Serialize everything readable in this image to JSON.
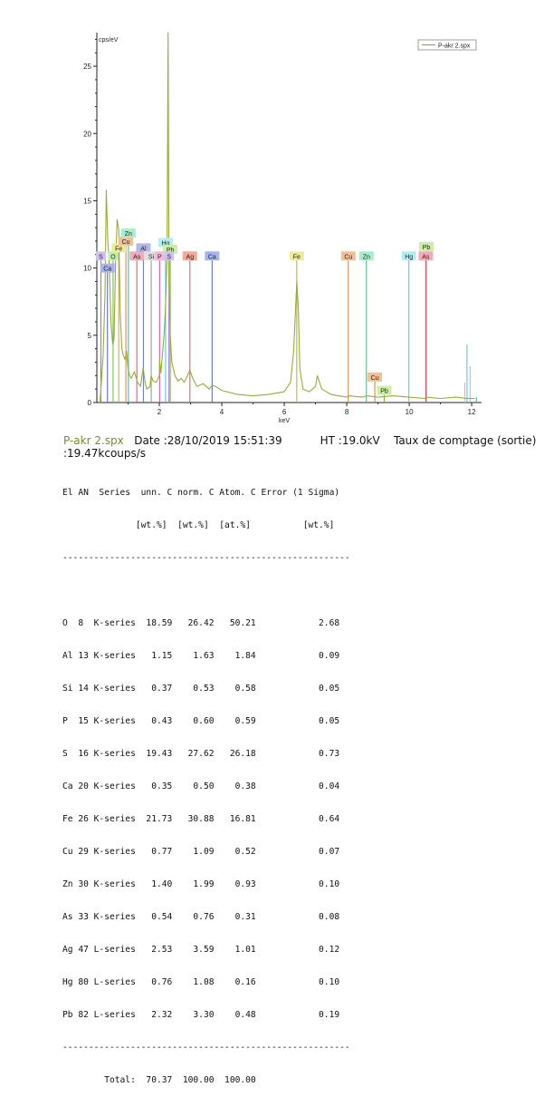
{
  "chart_data": {
    "type": "line",
    "ylabel": "cps/eV",
    "xlabel": "keV",
    "xlim": [
      0,
      12.2
    ],
    "ylim": [
      0,
      27.5
    ],
    "xticks": [
      2,
      4,
      6,
      8,
      10,
      12
    ],
    "yticks": [
      0,
      5,
      10,
      15,
      20,
      25
    ],
    "legend": "top-right",
    "series": [
      {
        "name": "P-akr 2.spx",
        "color": "#9aab3a",
        "x": [
          0.1,
          0.2,
          0.26,
          0.3,
          0.35,
          0.4,
          0.45,
          0.5,
          0.52,
          0.55,
          0.6,
          0.65,
          0.7,
          0.75,
          0.8,
          0.85,
          0.9,
          0.95,
          1.0,
          1.05,
          1.1,
          1.2,
          1.3,
          1.4,
          1.48,
          1.55,
          1.6,
          1.7,
          1.74,
          1.8,
          1.9,
          2.0,
          2.01,
          2.05,
          2.1,
          2.15,
          2.2,
          2.25,
          2.28,
          2.31,
          2.35,
          2.4,
          2.46,
          2.5,
          2.6,
          2.7,
          2.8,
          2.9,
          2.98,
          3.05,
          3.2,
          3.4,
          3.6,
          3.69,
          3.8,
          4.0,
          4.5,
          5.0,
          5.5,
          6.0,
          6.2,
          6.3,
          6.4,
          6.45,
          6.5,
          6.6,
          6.8,
          7.0,
          7.06,
          7.2,
          7.5,
          8.0,
          8.05,
          8.5,
          8.63,
          9.0,
          9.5,
          9.99,
          10.5,
          10.55,
          11.0,
          11.5,
          11.9,
          12.1
        ],
        "values": [
          0.0,
          3.5,
          8.0,
          15.8,
          12.0,
          10.2,
          6.0,
          4.5,
          4.3,
          4.8,
          10.5,
          13.6,
          12.8,
          6.5,
          4.0,
          3.5,
          3.2,
          3.8,
          2.5,
          2.0,
          1.8,
          2.3,
          1.5,
          1.2,
          2.6,
          1.4,
          1.0,
          1.2,
          2.0,
          1.6,
          1.5,
          2.0,
          3.2,
          2.2,
          3.6,
          5.0,
          7.2,
          11.0,
          27.5,
          9.0,
          5.0,
          3.0,
          2.4,
          2.0,
          1.6,
          1.8,
          1.5,
          2.0,
          2.4,
          1.9,
          1.2,
          1.4,
          1.0,
          1.3,
          1.2,
          0.9,
          0.6,
          0.5,
          0.6,
          0.8,
          1.5,
          3.8,
          9.0,
          7.0,
          2.5,
          1.0,
          0.8,
          1.2,
          2.0,
          1.0,
          0.6,
          0.4,
          0.5,
          0.4,
          0.5,
          0.4,
          0.5,
          0.4,
          0.3,
          0.4,
          0.3,
          0.4,
          0.3,
          0.3
        ]
      }
    ],
    "element_markers": [
      {
        "label": "S",
        "x": 0.13,
        "y": 10.9,
        "bg": "#d0c2f0",
        "line": "#9070d0"
      },
      {
        "label": "Ca",
        "x": 0.34,
        "y": 10.0,
        "bg": "#a8b4ee",
        "line": "#5060c8"
      },
      {
        "label": "O",
        "x": 0.52,
        "y": 10.9,
        "bg": "#c4eeb0",
        "line": "#70b050"
      },
      {
        "label": "Fe",
        "x": 0.7,
        "y": 11.5,
        "bg": "#eeec98",
        "line": "#b0b030"
      },
      {
        "label": "Cu",
        "x": 0.93,
        "y": 12.0,
        "bg": "#f2c098",
        "line": "#d08040"
      },
      {
        "label": "Zn",
        "x": 1.01,
        "y": 12.6,
        "bg": "#a8eecc",
        "line": "#40b080"
      },
      {
        "label": "As",
        "x": 1.28,
        "y": 10.9,
        "bg": "#f4aab8",
        "line": "#d05070"
      },
      {
        "label": "Al",
        "x": 1.49,
        "y": 11.5,
        "bg": "#b4b8e8",
        "line": "#6870c8"
      },
      {
        "label": "Si",
        "x": 1.74,
        "y": 10.9,
        "bg": "#e0e0e0",
        "line": "#909090"
      },
      {
        "label": "P",
        "x": 2.01,
        "y": 10.9,
        "bg": "#f4b8dc",
        "line": "#d050a0"
      },
      {
        "label": "Hg",
        "x": 2.2,
        "y": 11.9,
        "bg": "#b4eef2",
        "line": "#50c0d0"
      },
      {
        "label": "Pb",
        "x": 2.35,
        "y": 11.4,
        "bg": "#cceea8",
        "line": "#80b040"
      },
      {
        "label": "S",
        "x": 2.31,
        "y": 10.9,
        "bg": "#d0c2f0",
        "line": "#9070d0"
      },
      {
        "label": "Ag",
        "x": 2.98,
        "y": 10.9,
        "bg": "#f4a898",
        "line": "#d06050"
      },
      {
        "label": "Ca",
        "x": 3.69,
        "y": 10.9,
        "bg": "#a8b4ee",
        "line": "#5060c8"
      },
      {
        "label": "Fe",
        "x": 6.4,
        "y": 10.9,
        "bg": "#eeec98",
        "line": "#b0b030"
      },
      {
        "label": "Cu",
        "x": 8.05,
        "y": 10.9,
        "bg": "#f2c098",
        "line": "#d08040"
      },
      {
        "label": "Zn",
        "x": 8.63,
        "y": 10.9,
        "bg": "#a8eecc",
        "line": "#40b080"
      },
      {
        "label": "Hg",
        "x": 9.99,
        "y": 10.9,
        "bg": "#b4eef2",
        "line": "#50c0d0"
      },
      {
        "label": "Pb",
        "x": 10.55,
        "y": 11.6,
        "bg": "#cceea8",
        "line": "#80b040"
      },
      {
        "label": "As",
        "x": 10.53,
        "y": 10.9,
        "bg": "#f4aab8",
        "line": "#d05070"
      },
      {
        "label": "Cu",
        "x": 8.9,
        "y": 1.9,
        "bg": "#f2c098",
        "line": "#d08040"
      },
      {
        "label": "Pb",
        "x": 9.2,
        "y": 0.9,
        "bg": "#cceea8",
        "line": "#80b040"
      }
    ],
    "right_lines": [
      {
        "x": 11.85,
        "y": 4.3,
        "color": "#50c0d0"
      },
      {
        "x": 11.95,
        "y": 2.7,
        "color": "#a8b4ee"
      },
      {
        "x": 11.78,
        "y": 1.5,
        "color": "#f4aab8"
      },
      {
        "x": 12.15,
        "y": 0.4,
        "color": "#40b080"
      }
    ]
  },
  "meta": {
    "filename": "P-akr 2.spx",
    "date": "Date :28/10/2019 15:51:39",
    "ht": "HT :19.0kV",
    "rate_label": "Taux de comptage (sortie)",
    "rate_value": ":19.47kcoups/s"
  },
  "table": {
    "header1": "El AN  Series  unn. C norm. C Atom. C Error (1 Sigma)",
    "header2": "              [wt.%]  [wt.%]  [at.%]          [wt.%]",
    "rule": "-------------------------------------------------------",
    "rows": [
      "O  8  K-series  18.59   26.42   50.21            2.68",
      "Al 13 K-series   1.15    1.63    1.84            0.09",
      "Si 14 K-series   0.37    0.53    0.58            0.05",
      "P  15 K-series   0.43    0.60    0.59            0.05",
      "S  16 K-series  19.43   27.62   26.18            0.73",
      "Ca 20 K-series   0.35    0.50    0.38            0.04",
      "Fe 26 K-series  21.73   30.88   16.81            0.64",
      "Cu 29 K-series   0.77    1.09    0.52            0.07",
      "Zn 30 K-series   1.40    1.99    0.93            0.10",
      "As 33 K-series   0.54    0.76    0.31            0.08",
      "Ag 47 L-series   2.53    3.59    1.01            0.12",
      "Hg 80 L-series   0.76    1.08    0.16            0.10",
      "Pb 82 L-series   2.32    3.30    0.48            0.19"
    ],
    "total": "        Total:  70.37  100.00  100.00"
  }
}
